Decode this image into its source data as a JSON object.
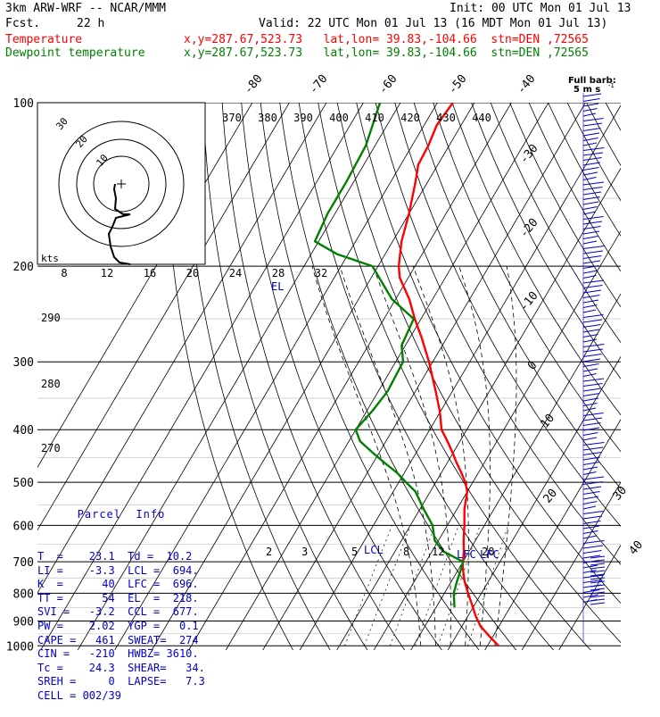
{
  "header": {
    "title": "3km ARW-WRF -- NCAR/MMM",
    "init": "Init: 00 UTC Mon 01 Jul 13",
    "fcst_label": "Fcst.",
    "fcst_value": "22 h",
    "valid": "Valid: 22 UTC Mon 01 Jul 13 (16 MDT Mon 01 Jul 13)",
    "temp_label": "Temperature",
    "dew_label": "Dewpoint temperature",
    "temp_loc": "x,y=287.67,523.73   lat,lon= 39.83,-104.66  stn=DEN ,72565",
    "dew_loc": "x,y=287.67,523.73   lat,lon= 39.83,-104.66  stn=DEN ,72565"
  },
  "colors": {
    "temperature": "#ff0000",
    "dewpoint": "#008000",
    "grid": "#000000",
    "moist": "#000000",
    "info": "#0000cc"
  },
  "chart_data": {
    "type": "line",
    "pressure_levels": [
      "100",
      "200",
      "300",
      "400",
      "500",
      "600",
      "700",
      "800",
      "900",
      "1000"
    ],
    "skewed_temp_labels": [
      "-80",
      "-70",
      "-60",
      "-50",
      "-40",
      "-30",
      "-20",
      "-10",
      "0",
      "10",
      "20",
      "30",
      "40"
    ],
    "theta_labels": [
      "370",
      "380",
      "390",
      "400",
      "410",
      "420",
      "430",
      "440"
    ],
    "mixing_ratio_labels": [
      "2",
      "3",
      "5",
      "8",
      "12",
      "20"
    ],
    "theta_side_labels": [
      "290",
      "280",
      "270"
    ],
    "series": [
      {
        "name": "Temperature",
        "p": [
          1000,
          960,
          920,
          880,
          850,
          800,
          760,
          720,
          700,
          670,
          640,
          600,
          560,
          520,
          500,
          480,
          460,
          440,
          420,
          400,
          370,
          340,
          300,
          270,
          250,
          230,
          210,
          200,
          180,
          160,
          140,
          130,
          120,
          110,
          100
        ],
        "t": [
          33,
          29,
          25,
          22,
          20,
          16.4,
          13.5,
          11,
          10,
          8.6,
          6.8,
          4.6,
          2,
          0,
          -2,
          -4.6,
          -7.5,
          -10.3,
          -13.4,
          -16.8,
          -20.2,
          -24.5,
          -31,
          -37,
          -41.7,
          -46.3,
          -52.3,
          -54.4,
          -57.6,
          -60,
          -63.3,
          -65.3,
          -65.6,
          -66.6,
          -65.8
        ]
      },
      {
        "name": "Dewpoint temperature",
        "p": [
          850,
          800,
          760,
          720,
          700,
          670,
          640,
          600,
          560,
          520,
          500,
          480,
          460,
          440,
          420,
          400,
          370,
          340,
          300,
          280,
          250,
          230,
          200,
          190,
          180,
          160,
          140,
          120,
          100
        ],
        "t": [
          15,
          12.5,
          11.5,
          10.6,
          10,
          3,
          -1,
          -4,
          -9,
          -14,
          -18,
          -22,
          -27,
          -32,
          -37,
          -40,
          -38.5,
          -37.5,
          -38,
          -41,
          -42,
          -51,
          -61.5,
          -73,
          -81,
          -82,
          -82,
          -82.5,
          -85.5
        ]
      }
    ],
    "annotations": [
      "EL",
      "LCL",
      "LFC",
      "LFC"
    ],
    "winds": {
      "title": "Full barb:",
      "unit": "5 m s",
      "unit_sup": "-1"
    },
    "hodograph": {
      "unit": "kts",
      "ring_labels": [
        "30",
        "20",
        "10"
      ],
      "axis_labels": [
        "8",
        "12",
        "16",
        "20",
        "24",
        "28",
        "32"
      ]
    }
  },
  "parcel": {
    "title": "Parcel  Info",
    "rows": [
      "T  =    23.1  Td =  10.2",
      "LI =    -3.3  LCL =  694.",
      "K  =      40  LFC =  696.",
      "TT =      54  EL  =  218.",
      "SVI =   -3.2  CCL =  677.",
      "PW =    2.02  YGP =   0.1",
      "CAPE =   461  SWEAT=  274",
      "CIN =   -210  HWBZ= 3610.",
      "Tc =    24.3  SHEAR=   34.",
      "SREH =     0  LAPSE=   7.3",
      "CELL = 002/39"
    ]
  }
}
